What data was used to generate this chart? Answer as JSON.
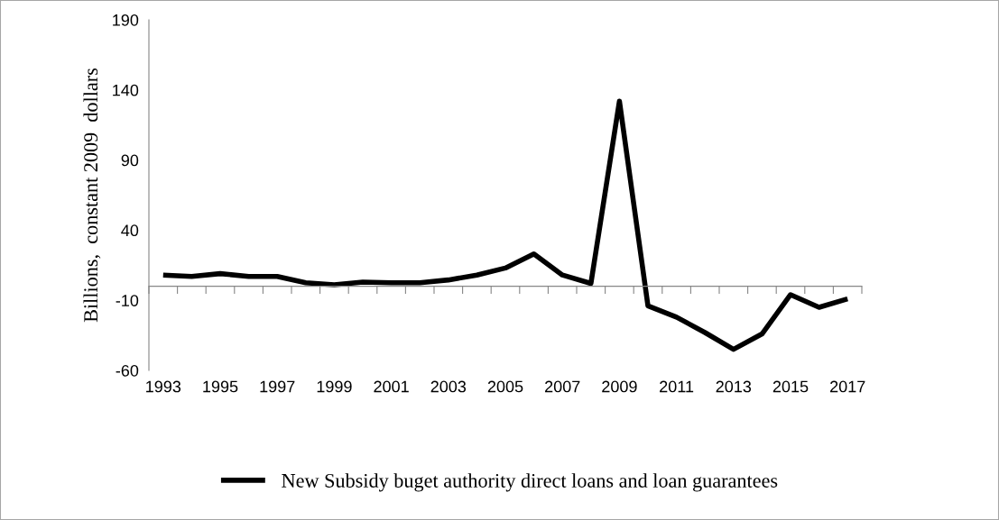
{
  "chart_data": {
    "type": "line",
    "ylabel": "Billions,  constant 2009  dollars",
    "categories": [
      "1993",
      null,
      "1995",
      null,
      "1997",
      null,
      "1999",
      null,
      "2001",
      null,
      "2003",
      null,
      "2005",
      null,
      "2007",
      null,
      "2009",
      null,
      "2011",
      null,
      "2013",
      null,
      "2015",
      null,
      "2017"
    ],
    "series": [
      {
        "name": "New Subsidy buget authority direct loans and loan guarantees",
        "color": "#000000",
        "values": [
          8,
          7,
          9,
          7,
          7,
          2.5,
          1,
          3,
          2.5,
          2.5,
          4.5,
          8,
          13,
          23,
          8,
          2,
          132,
          -14,
          -22,
          -33,
          -45,
          -34,
          -6,
          -15,
          -9
        ]
      }
    ],
    "ylim": [
      -60,
      190
    ],
    "yticks": [
      -60,
      -10,
      40,
      90,
      140,
      190
    ],
    "grid": false,
    "legend": "bottom",
    "marker": "none",
    "line_style": "solid"
  }
}
